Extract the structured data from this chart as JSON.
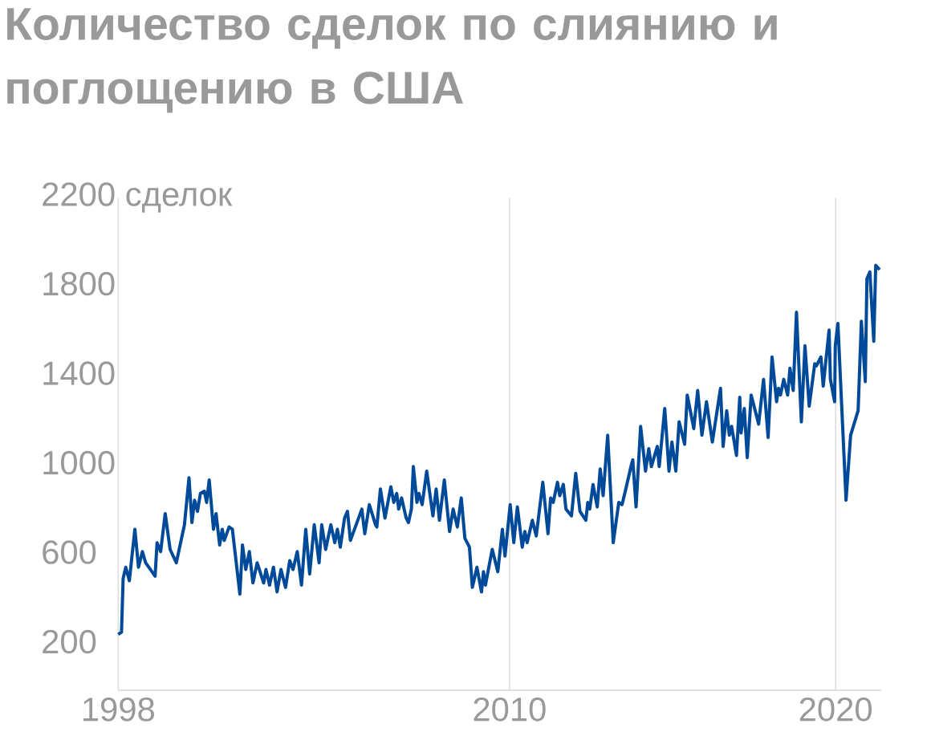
{
  "chart_data": {
    "type": "line",
    "title": "Количество сделок по слиянию и поглощению в США",
    "x": [
      1998.0,
      1998.1,
      1998.15,
      1998.23,
      1998.34,
      1998.51,
      1998.62,
      1998.74,
      1998.84,
      1999.13,
      1999.19,
      1999.3,
      1999.44,
      1999.59,
      1999.78,
      2000.03,
      2000.17,
      2000.26,
      2000.34,
      2000.43,
      2000.52,
      2000.64,
      2000.71,
      2000.79,
      2000.92,
      2001.0,
      2001.11,
      2001.19,
      2001.25,
      2001.4,
      2001.5,
      2001.73,
      2001.81,
      2001.91,
      2002.02,
      2002.13,
      2002.26,
      2002.46,
      2002.53,
      2002.64,
      2002.76,
      2002.87,
      2002.99,
      2003.13,
      2003.26,
      2003.36,
      2003.49,
      2003.62,
      2003.75,
      2003.87,
      2004.01,
      2004.16,
      2004.24,
      2004.36,
      2004.52,
      2004.64,
      2004.72,
      2004.81,
      2004.94,
      2005.03,
      2005.12,
      2005.47,
      2005.56,
      2005.7,
      2005.89,
      2005.93,
      2006.04,
      2006.18,
      2006.36,
      2006.45,
      2006.54,
      2006.6,
      2006.69,
      2006.83,
      2006.9,
      2006.99,
      2007.05,
      2007.16,
      2007.22,
      2007.32,
      2007.46,
      2007.65,
      2007.75,
      2007.85,
      2008.0,
      2008.16,
      2008.27,
      2008.4,
      2008.52,
      2008.63,
      2008.77,
      2008.86,
      2009.0,
      2009.14,
      2009.2,
      2009.26,
      2009.47,
      2009.64,
      2009.78,
      2009.86,
      2010.02,
      2010.13,
      2010.24,
      2010.39,
      2010.47,
      2010.54,
      2010.7,
      2010.82,
      2011.02,
      2011.18,
      2011.26,
      2011.34,
      2011.47,
      2011.54,
      2011.65,
      2011.73,
      2011.9,
      2012.03,
      2012.16,
      2012.34,
      2012.4,
      2012.46,
      2012.56,
      2012.69,
      2012.78,
      2012.87,
      2013.01,
      2013.18,
      2013.35,
      2013.45,
      2013.55,
      2013.74,
      2013.78,
      2013.88,
      2014.02,
      2014.17,
      2014.27,
      2014.35,
      2014.53,
      2014.59,
      2014.76,
      2014.89,
      2014.98,
      2015.1,
      2015.2,
      2015.37,
      2015.45,
      2015.65,
      2015.77,
      2015.9,
      2016.04,
      2016.22,
      2016.47,
      2016.55,
      2016.66,
      2016.74,
      2016.81,
      2016.96,
      2017.06,
      2017.1,
      2017.2,
      2017.29,
      2017.41,
      2017.64,
      2017.79,
      2017.93,
      2018.05,
      2018.19,
      2018.25,
      2018.31,
      2018.41,
      2018.53,
      2018.6,
      2018.7,
      2018.8,
      2018.95,
      2019.06,
      2019.19,
      2019.36,
      2019.41,
      2019.55,
      2019.62,
      2019.8,
      2019.84,
      2019.97,
      2019.99,
      2020.07,
      2020.32,
      2020.46,
      2020.69,
      2020.79,
      2020.91,
      2020.96,
      2021.05,
      2021.17,
      2021.23,
      2021.35
    ],
    "series": [
      {
        "color": "#004a99",
        "values": [
          250,
          260,
          500,
          550,
          490,
          720,
          550,
          620,
          570,
          510,
          660,
          620,
          790,
          630,
          570,
          740,
          950,
          750,
          850,
          800,
          880,
          890,
          840,
          940,
          720,
          790,
          650,
          720,
          670,
          730,
          720,
          430,
          650,
          540,
          620,
          480,
          570,
          480,
          540,
          470,
          550,
          440,
          540,
          460,
          580,
          540,
          620,
          470,
          720,
          520,
          740,
          570,
          740,
          630,
          740,
          660,
          720,
          640,
          770,
          800,
          670,
          810,
          700,
          830,
          740,
          730,
          900,
          770,
          910,
          840,
          880,
          810,
          860,
          770,
          750,
          810,
          1000,
          840,
          880,
          830,
          980,
          780,
          900,
          760,
          940,
          710,
          810,
          730,
          860,
          680,
          640,
          460,
          550,
          440,
          530,
          470,
          630,
          530,
          720,
          600,
          830,
          660,
          820,
          640,
          710,
          660,
          760,
          690,
          930,
          700,
          860,
          840,
          930,
          870,
          920,
          810,
          780,
          970,
          800,
          760,
          840,
          810,
          920,
          820,
          990,
          870,
          1140,
          660,
          840,
          830,
          890,
          1010,
          1030,
          820,
          1180,
          980,
          1080,
          1000,
          1090,
          1000,
          1260,
          980,
          1110,
          980,
          1200,
          1100,
          1320,
          1170,
          1340,
          1140,
          1290,
          1110,
          1350,
          1090,
          1250,
          1140,
          1180,
          1050,
          1310,
          1150,
          1260,
          1040,
          1320,
          1190,
          1390,
          1130,
          1490,
          1290,
          1350,
          1320,
          1390,
          1320,
          1440,
          1340,
          1690,
          1200,
          1540,
          1270,
          1460,
          1450,
          1490,
          1360,
          1610,
          1390,
          1290,
          1540,
          1640,
          850,
          1140,
          1250,
          1650,
          1380,
          1840,
          1870,
          1560,
          1900,
          1880
        ]
      }
    ],
    "xlim": [
      1998,
      2021.4
    ],
    "ylim": [
      0,
      2200
    ],
    "xticks": [
      1998,
      2010,
      2020
    ],
    "yticks": [
      200,
      600,
      1000,
      1400,
      1800,
      {
        "value": 2200,
        "label": "2200 сделок"
      }
    ],
    "grid": "x"
  }
}
